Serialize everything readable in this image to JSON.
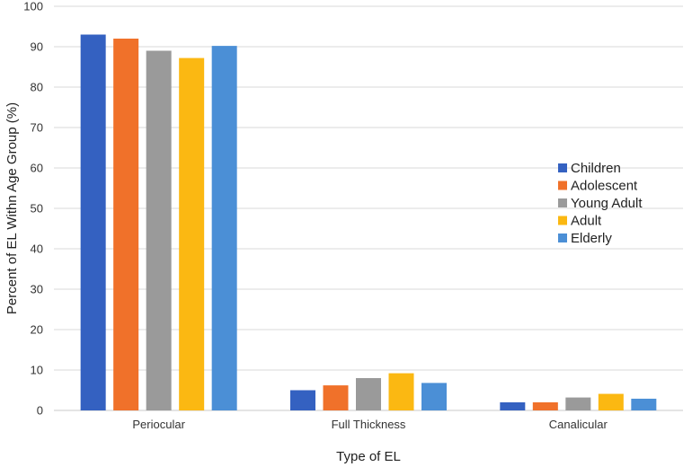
{
  "chart_data": {
    "type": "bar",
    "title": "",
    "xlabel": "Type of EL",
    "ylabel": "Percent of EL Withn Age Group (%)",
    "categories": [
      "Periocular",
      "Full Thickness",
      "Canalicular"
    ],
    "ylim": [
      0,
      100
    ],
    "yticks": [
      0,
      10,
      20,
      30,
      40,
      50,
      60,
      70,
      80,
      90,
      100
    ],
    "grid": true,
    "legend_position": "right",
    "series": [
      {
        "name": "Children",
        "color": "#3461c1",
        "values": [
          93.0,
          5.0,
          2.0
        ]
      },
      {
        "name": "Adolescent",
        "color": "#f0712a",
        "values": [
          92.0,
          6.2,
          2.0
        ]
      },
      {
        "name": "Young Adult",
        "color": "#9a9a9a",
        "values": [
          89.0,
          8.0,
          3.2
        ]
      },
      {
        "name": "Adult",
        "color": "#fbb812",
        "values": [
          87.2,
          9.2,
          4.1
        ]
      },
      {
        "name": "Elderly",
        "color": "#4b8fd6",
        "values": [
          90.2,
          6.8,
          2.9
        ]
      }
    ]
  }
}
